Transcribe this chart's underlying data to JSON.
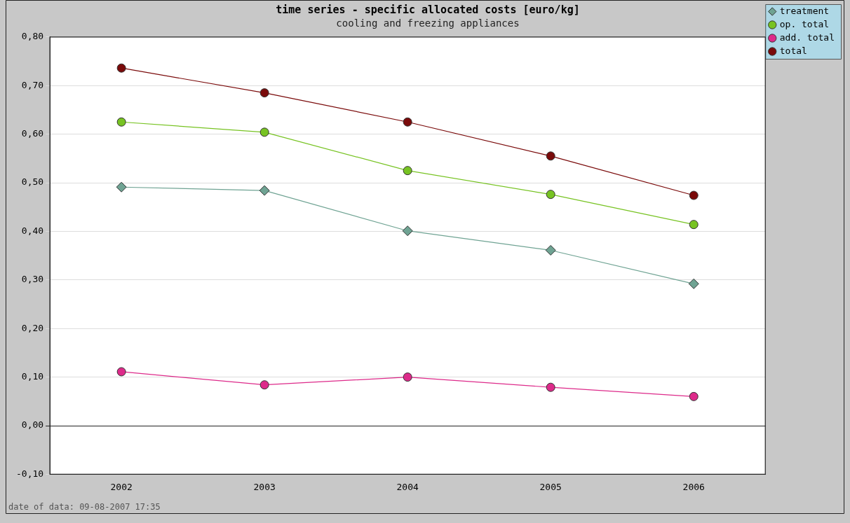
{
  "chart_data": {
    "type": "line",
    "title": "time series - specific allocated costs [euro/kg]",
    "subtitle": "cooling and freezing appliances",
    "categories": [
      "2002",
      "2003",
      "2004",
      "2005",
      "2006"
    ],
    "series": [
      {
        "name": "treatment",
        "color": "#6fa393",
        "marker": "diamond",
        "values": [
          0.491,
          0.484,
          0.401,
          0.361,
          0.292
        ]
      },
      {
        "name": "op. total",
        "color": "#77c322",
        "values": [
          0.625,
          0.604,
          0.525,
          0.476,
          0.414
        ]
      },
      {
        "name": "add. total",
        "color": "#dd2a8a",
        "values": [
          0.111,
          0.084,
          0.1,
          0.079,
          0.06
        ]
      },
      {
        "name": "total",
        "color": "#7a0a0a",
        "values": [
          0.736,
          0.685,
          0.625,
          0.555,
          0.474
        ]
      }
    ],
    "ylim": [
      -0.1,
      0.8
    ],
    "yticks": [
      {
        "value": -0.1,
        "label": "-0,10"
      },
      {
        "value": 0,
        "label": "0,00"
      },
      {
        "value": 0.1,
        "label": "0,10"
      },
      {
        "value": 0.2,
        "label": "0,20"
      },
      {
        "value": 0.3,
        "label": "0,30"
      },
      {
        "value": 0.4,
        "label": "0,40"
      },
      {
        "value": 0.5,
        "label": "0,50"
      },
      {
        "value": 0.6,
        "label": "0,60"
      },
      {
        "value": 0.7,
        "label": "0,70"
      },
      {
        "value": 0.8,
        "label": "0,80"
      }
    ],
    "grid": "y",
    "legend": "top right",
    "marker": "circle",
    "line_style": "solid",
    "annotations": [
      "date of data: 09-08-2007 17:35"
    ]
  }
}
